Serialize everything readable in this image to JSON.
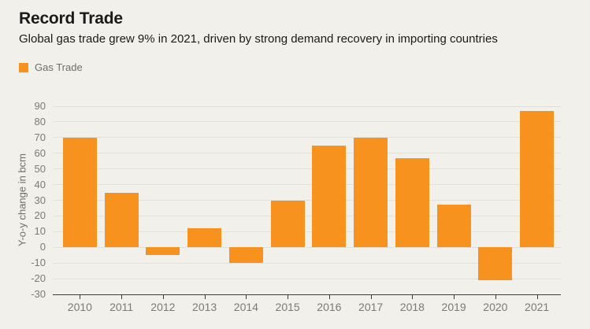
{
  "header": {
    "title": "Record Trade",
    "subtitle": "Global gas trade grew 9% in 2021, driven by strong demand recovery in importing countries"
  },
  "legend": {
    "label": "Gas Trade",
    "swatch_color": "#F8921E"
  },
  "colors": {
    "background": "#F1F0EA",
    "bar": "#F8921E",
    "gridline": "#E2E1D9",
    "axis_line": "#3C3C3C",
    "tick_text": "#7B7A74",
    "text": "#1A1A1A"
  },
  "chart_data": {
    "type": "bar",
    "title": "Record Trade",
    "subtitle": "Global gas trade grew 9% in 2021, driven by strong demand recovery in importing countries",
    "series_name": "Gas Trade",
    "categories": [
      "2010",
      "2011",
      "2012",
      "2013",
      "2014",
      "2015",
      "2016",
      "2017",
      "2018",
      "2019",
      "2020",
      "2021"
    ],
    "values": [
      70,
      35,
      -5,
      12,
      -10,
      30,
      65,
      70,
      57,
      27,
      -21,
      87
    ],
    "xlabel": "",
    "ylabel": "Y-o-y change in bcm",
    "ylim": [
      -30,
      90
    ],
    "ytick_step": 10,
    "yticks": [
      90,
      80,
      70,
      60,
      50,
      40,
      30,
      20,
      10,
      0,
      -10,
      -20,
      -30
    ],
    "grid": true,
    "legend_position": "top-left"
  }
}
